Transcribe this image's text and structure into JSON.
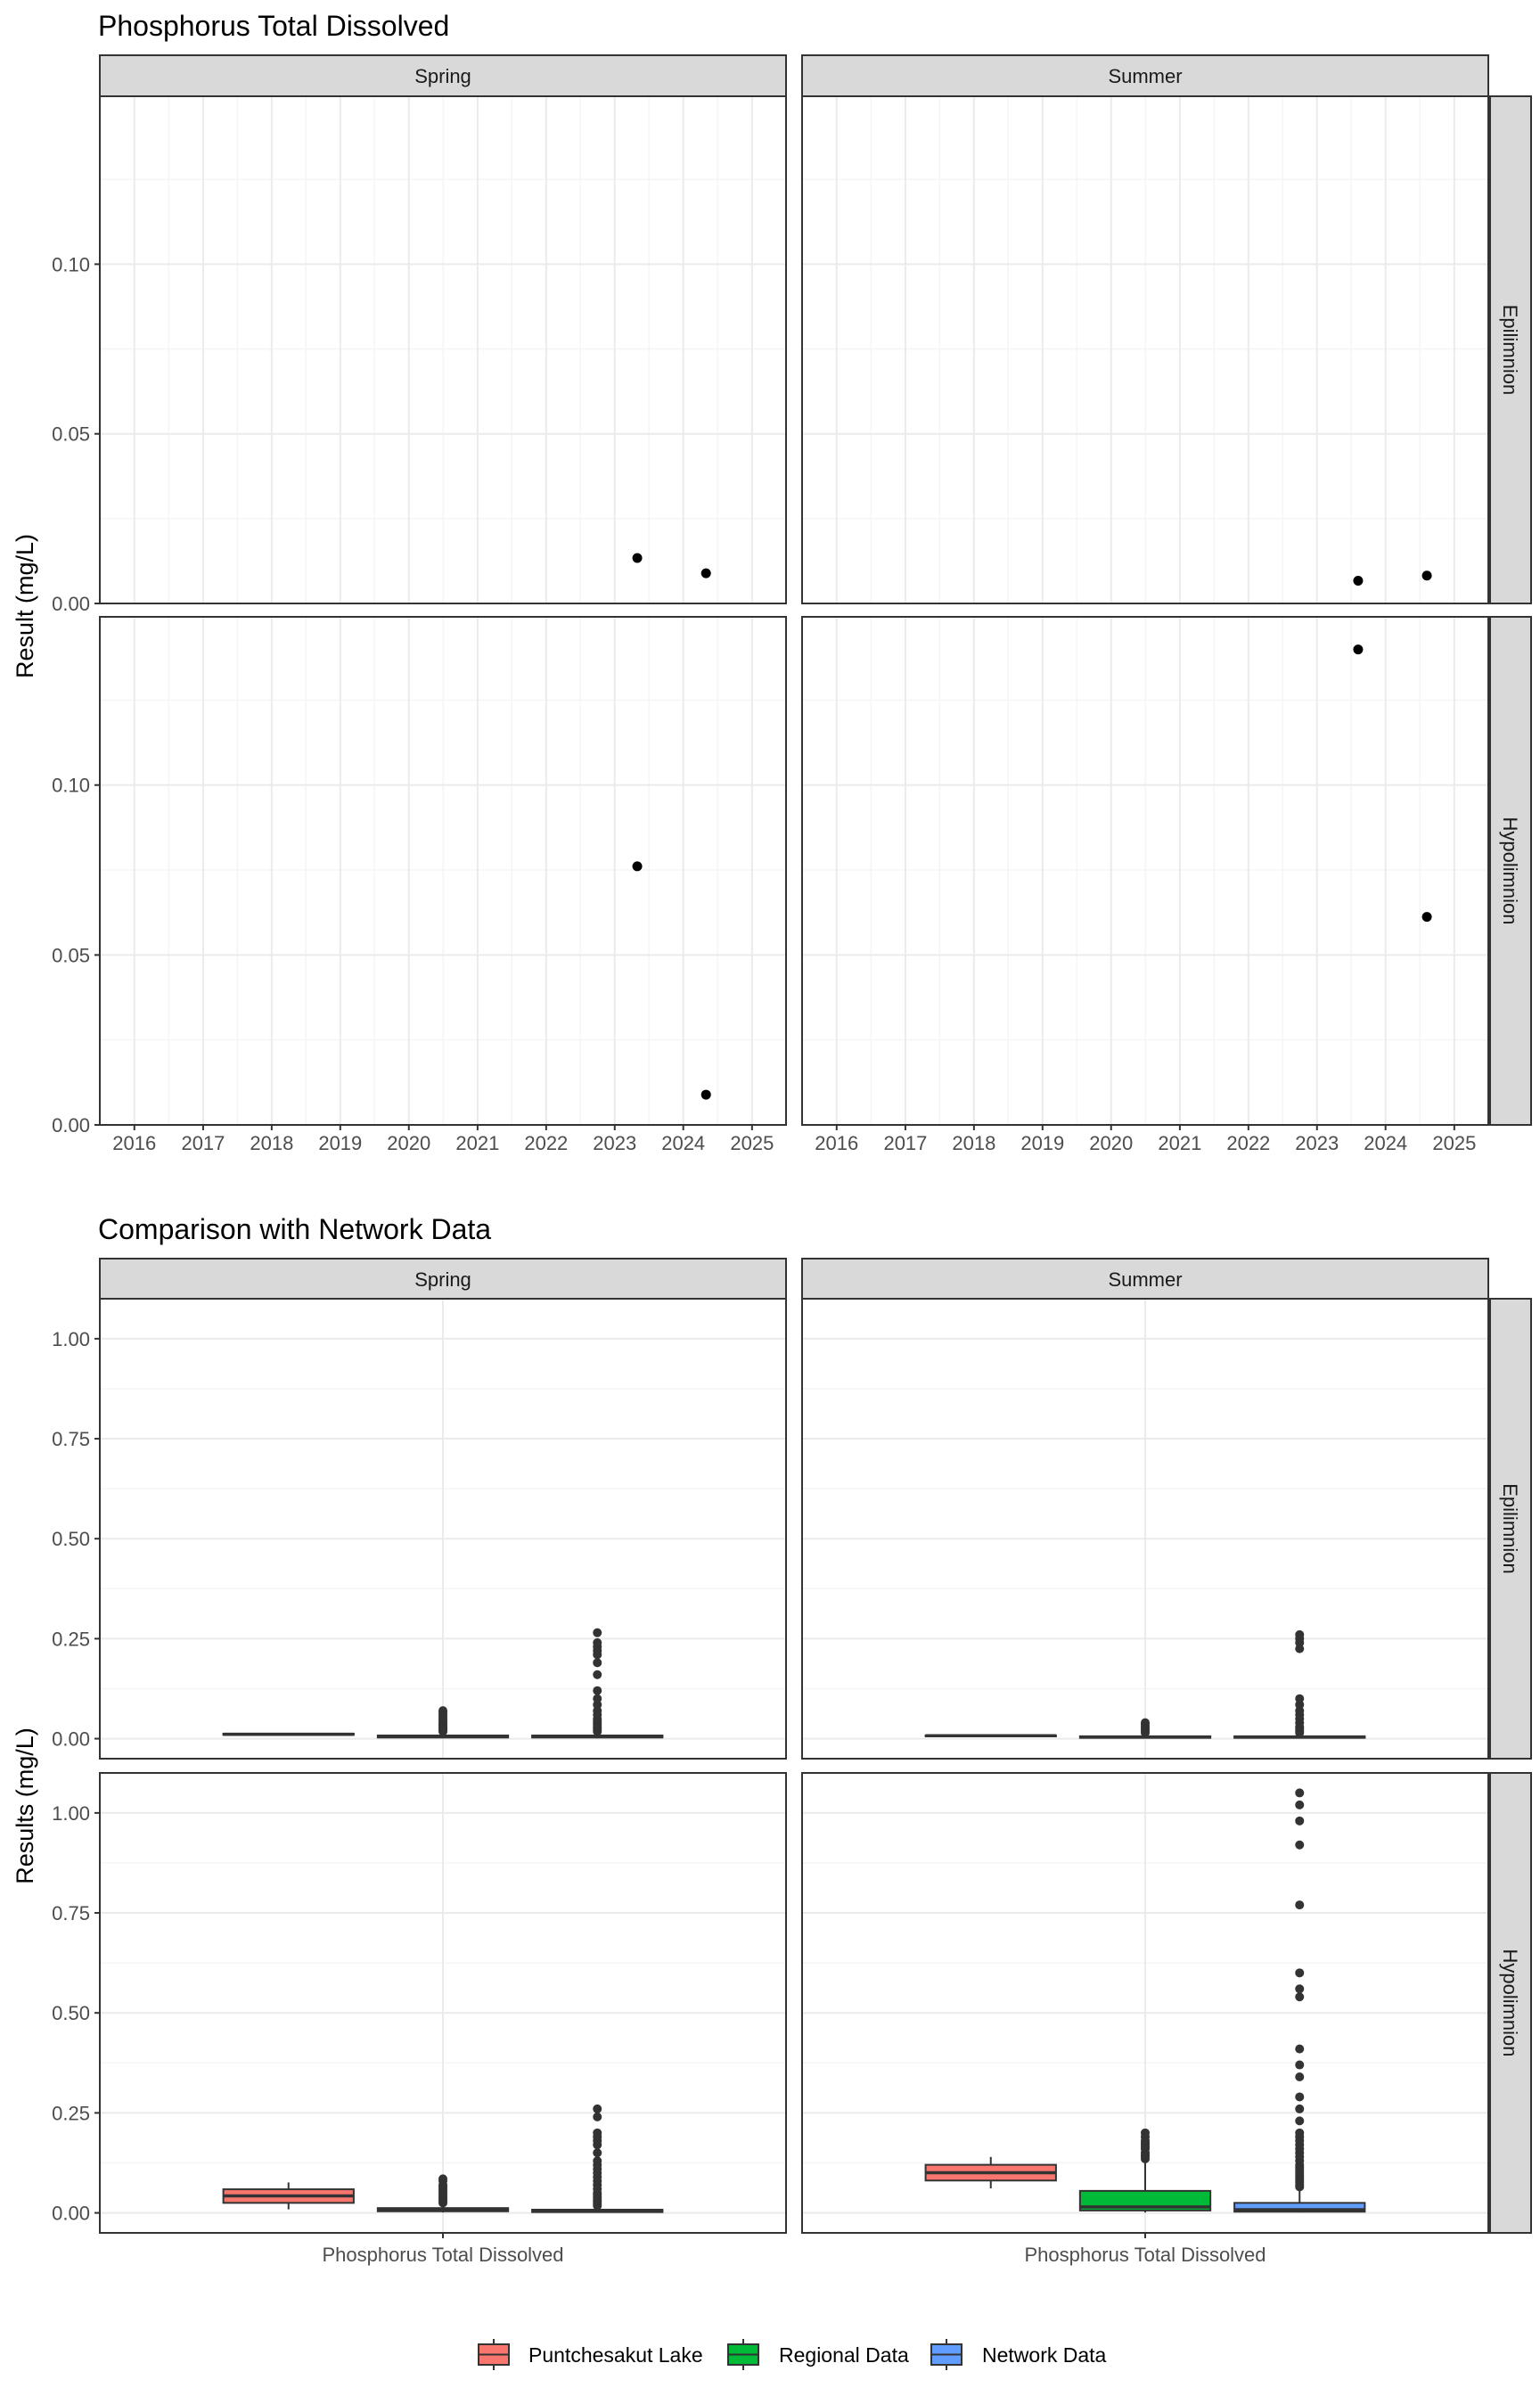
{
  "chart_data": [
    {
      "type": "scatter",
      "title": "Phosphorus Total Dissolved",
      "ylabel": "Result (mg/L)",
      "xlabel": "",
      "x_axis": "date",
      "xlim": [
        "2015-07-01",
        "2025-07-01"
      ],
      "x_ticks": [
        "2016",
        "2017",
        "2018",
        "2019",
        "2020",
        "2021",
        "2022",
        "2023",
        "2024",
        "2025"
      ],
      "ylim": [
        0,
        0.1495
      ],
      "y_ticks": [
        "0.00",
        "0.05",
        "0.10"
      ],
      "grid": true,
      "col_facets": [
        "Spring",
        "Summer"
      ],
      "row_facets": [
        "Epilimnion",
        "Hypolimnion"
      ],
      "panels": [
        {
          "col": "Spring",
          "row": "Epilimnion",
          "points": [
            {
              "x": "2023-05-01",
              "y": 0.0134
            },
            {
              "x": "2024-05-01",
              "y": 0.0089
            }
          ]
        },
        {
          "col": "Summer",
          "row": "Epilimnion",
          "points": [
            {
              "x": "2023-08-08",
              "y": 0.0067
            },
            {
              "x": "2024-08-08",
              "y": 0.0082
            }
          ]
        },
        {
          "col": "Spring",
          "row": "Hypolimnion",
          "points": [
            {
              "x": "2023-05-01",
              "y": 0.0761
            },
            {
              "x": "2024-05-01",
              "y": 0.0089
            }
          ]
        },
        {
          "col": "Summer",
          "row": "Hypolimnion",
          "points": [
            {
              "x": "2023-08-08",
              "y": 0.1399
            },
            {
              "x": "2024-08-08",
              "y": 0.0612
            }
          ]
        }
      ]
    },
    {
      "type": "box",
      "title": "Comparison with Network Data",
      "ylabel": "Results (mg/L)",
      "category": "Phosphorus Total Dissolved",
      "ylim": [
        -0.05,
        1.1
      ],
      "y_ticks": [
        "0.00",
        "0.25",
        "0.50",
        "0.75",
        "1.00"
      ],
      "grid": true,
      "col_facets": [
        "Spring",
        "Summer"
      ],
      "row_facets": [
        "Epilimnion",
        "Hypolimnion"
      ],
      "legend": {
        "position": "bottom",
        "entries": [
          {
            "name": "Puntchesakut Lake",
            "color": "#F8766D"
          },
          {
            "name": "Regional Data",
            "color": "#00BA38"
          },
          {
            "name": "Network Data",
            "color": "#619CFF"
          }
        ]
      },
      "panels": [
        {
          "col": "Spring",
          "row": "Epilimnion",
          "boxes": [
            {
              "group": "Puntchesakut Lake",
              "min": 0.009,
              "q1": 0.0095,
              "median": 0.011,
              "q3": 0.0125,
              "max": 0.0134,
              "outliers": []
            },
            {
              "group": "Regional Data",
              "min": 0.001,
              "q1": 0.003,
              "median": 0.005,
              "q3": 0.008,
              "max": 0.015,
              "outliers": [
                0.018,
                0.021,
                0.024,
                0.027,
                0.03,
                0.033,
                0.036,
                0.04,
                0.045,
                0.05,
                0.055,
                0.06,
                0.065,
                0.07
              ]
            },
            {
              "group": "Network Data",
              "min": 0.001,
              "q1": 0.003,
              "median": 0.005,
              "q3": 0.008,
              "max": 0.015,
              "outliers": [
                0.018,
                0.022,
                0.026,
                0.03,
                0.035,
                0.04,
                0.045,
                0.05,
                0.06,
                0.07,
                0.085,
                0.1,
                0.12,
                0.16,
                0.19,
                0.21,
                0.22,
                0.23,
                0.24,
                0.265
              ]
            }
          ]
        },
        {
          "col": "Summer",
          "row": "Epilimnion",
          "boxes": [
            {
              "group": "Puntchesakut Lake",
              "min": 0.0067,
              "q1": 0.007,
              "median": 0.0075,
              "q3": 0.008,
              "max": 0.0082,
              "outliers": []
            },
            {
              "group": "Regional Data",
              "min": 0.001,
              "q1": 0.002,
              "median": 0.004,
              "q3": 0.006,
              "max": 0.012,
              "outliers": [
                0.015,
                0.02,
                0.025,
                0.03,
                0.035,
                0.04
              ]
            },
            {
              "group": "Network Data",
              "min": 0.001,
              "q1": 0.002,
              "median": 0.004,
              "q3": 0.006,
              "max": 0.012,
              "outliers": [
                0.015,
                0.02,
                0.025,
                0.03,
                0.04,
                0.05,
                0.06,
                0.07,
                0.085,
                0.1,
                0.225,
                0.24,
                0.25,
                0.26
              ]
            }
          ]
        },
        {
          "col": "Spring",
          "row": "Hypolimnion",
          "boxes": [
            {
              "group": "Puntchesakut Lake",
              "min": 0.0089,
              "q1": 0.025,
              "median": 0.0425,
              "q3": 0.059,
              "max": 0.0761,
              "outliers": []
            },
            {
              "group": "Regional Data",
              "min": 0.001,
              "q1": 0.004,
              "median": 0.007,
              "q3": 0.012,
              "max": 0.02,
              "outliers": [
                0.025,
                0.03,
                0.035,
                0.04,
                0.045,
                0.05,
                0.055,
                0.06,
                0.065,
                0.07,
                0.08,
                0.085
              ]
            },
            {
              "group": "Network Data",
              "min": 0.001,
              "q1": 0.002,
              "median": 0.004,
              "q3": 0.008,
              "max": 0.015,
              "outliers": [
                0.018,
                0.022,
                0.026,
                0.03,
                0.035,
                0.04,
                0.045,
                0.05,
                0.06,
                0.07,
                0.08,
                0.09,
                0.1,
                0.11,
                0.12,
                0.13,
                0.15,
                0.17,
                0.18,
                0.19,
                0.2,
                0.24,
                0.26
              ]
            }
          ]
        },
        {
          "col": "Summer",
          "row": "Hypolimnion",
          "boxes": [
            {
              "group": "Puntchesakut Lake",
              "min": 0.0612,
              "q1": 0.0809,
              "median": 0.1005,
              "q3": 0.1202,
              "max": 0.1399,
              "outliers": []
            },
            {
              "group": "Regional Data",
              "min": 0.001,
              "q1": 0.006,
              "median": 0.015,
              "q3": 0.055,
              "max": 0.13,
              "outliers": [
                0.135,
                0.14,
                0.145,
                0.15,
                0.16,
                0.165,
                0.17,
                0.175,
                0.18,
                0.19,
                0.2
              ]
            },
            {
              "group": "Network Data",
              "min": 0.001,
              "q1": 0.003,
              "median": 0.008,
              "q3": 0.025,
              "max": 0.06,
              "outliers": [
                0.065,
                0.07,
                0.075,
                0.08,
                0.085,
                0.09,
                0.095,
                0.1,
                0.105,
                0.11,
                0.115,
                0.12,
                0.13,
                0.14,
                0.15,
                0.16,
                0.17,
                0.18,
                0.19,
                0.2,
                0.23,
                0.26,
                0.29,
                0.34,
                0.37,
                0.41,
                0.54,
                0.56,
                0.6,
                0.77,
                0.92,
                0.98,
                1.02,
                1.05
              ]
            }
          ]
        }
      ]
    }
  ]
}
